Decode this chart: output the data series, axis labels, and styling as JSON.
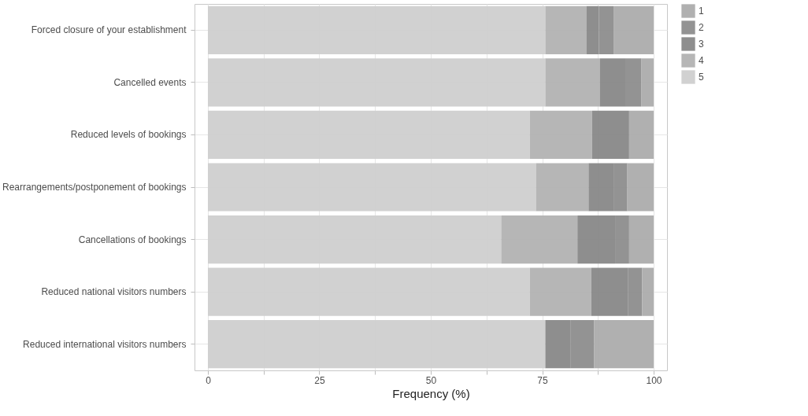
{
  "chart_data": {
    "type": "bar",
    "orientation": "horizontal",
    "stacked": true,
    "xlabel": "Frequency (%)",
    "categories": [
      "Forced closure of your establishment",
      "Cancelled events",
      "Reduced levels of bookings",
      "Rearrangements/postponement of bookings",
      "Cancellations of bookings",
      "Reduced national visitors numbers",
      "Reduced international visitors numbers"
    ],
    "series": [
      {
        "name": "5",
        "color": "#cfcfcf",
        "values": [
          75.7,
          75.7,
          72.2,
          73.6,
          65.8,
          72.2,
          75.7
        ]
      },
      {
        "name": "4",
        "color": "#b2b2b2",
        "values": [
          9.2,
          12.2,
          14.0,
          11.8,
          17.1,
          13.8,
          0
        ]
      },
      {
        "name": "3",
        "color": "#888888",
        "values": [
          2.8,
          5.9,
          8.3,
          5.6,
          8.6,
          8.3,
          5.6
        ]
      },
      {
        "name": "2",
        "color": "#8d8d8d",
        "values": [
          3.3,
          3.4,
          0,
          3.1,
          3.0,
          3.1,
          5.3
        ]
      },
      {
        "name": "1",
        "color": "#acacac",
        "values": [
          9.0,
          2.8,
          5.5,
          5.9,
          5.5,
          2.6,
          13.4
        ]
      }
    ],
    "xlim": [
      -3,
      103
    ],
    "xticks": [
      0,
      {
        "value": 12.5,
        "label": null
      },
      25,
      {
        "value": 37.5,
        "label": null
      },
      50,
      {
        "value": 62.5,
        "label": null
      },
      75,
      {
        "value": 87.5,
        "label": null
      },
      100
    ],
    "grid": true,
    "legend": "right"
  }
}
